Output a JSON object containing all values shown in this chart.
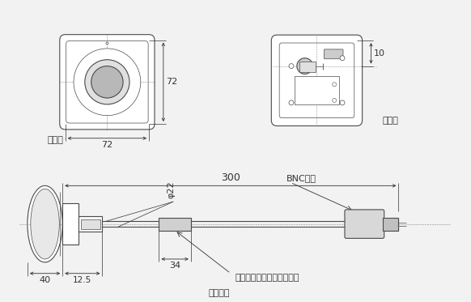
{
  "bg_color": "#f2f2f2",
  "line_color": "#4a4a4a",
  "dim_color": "#333333",
  "front_label": "正面図",
  "back_label": "背面図",
  "side_label": "右側面図",
  "bnc_label": "BNC端子",
  "ferrite_label": "フェライトコア（付属品）",
  "dim_72_h": "72",
  "dim_72_w": "72",
  "dim_10": "10",
  "dim_40": "40",
  "dim_12_5": "12.5",
  "dim_22": "φ22",
  "dim_34": "34",
  "dim_300": "300"
}
